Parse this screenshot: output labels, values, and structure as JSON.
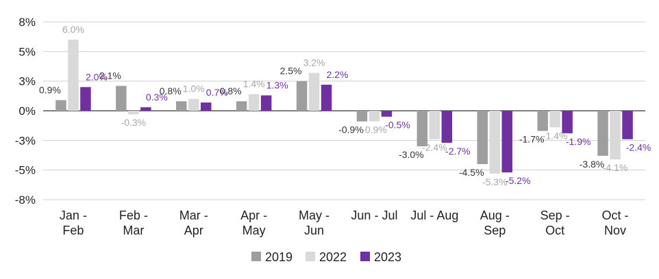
{
  "chart_data": {
    "type": "bar",
    "title": "",
    "xlabel": "",
    "ylabel": "",
    "categories": [
      [
        "Jan -",
        "Feb"
      ],
      [
        "Feb -",
        "Mar"
      ],
      [
        "Mar -",
        "Apr"
      ],
      [
        "Apr -",
        "May"
      ],
      [
        "May -",
        "Jun"
      ],
      [
        "Jun - Jul"
      ],
      [
        "Jul - Aug"
      ],
      [
        "Aug -",
        "Sep"
      ],
      [
        "Sep -",
        "Oct"
      ],
      [
        "Oct -",
        "Nov"
      ]
    ],
    "yticks": [
      {
        "value": 7.5,
        "label": "8%"
      },
      {
        "value": 5,
        "label": "5%"
      },
      {
        "value": 2.5,
        "label": "3%"
      },
      {
        "value": 0,
        "label": "0%"
      },
      {
        "value": -2.5,
        "label": "-3%"
      },
      {
        "value": -5,
        "label": "-5%"
      },
      {
        "value": -7.5,
        "label": "-8%"
      }
    ],
    "ylim": [
      -7.5,
      7.5
    ],
    "grid": true,
    "legend_position": "bottom-center",
    "series": [
      {
        "name": "2019",
        "color": "#9e9e9e",
        "label_color": "#333333",
        "values": [
          0.9,
          2.1,
          0.8,
          0.8,
          2.5,
          -0.9,
          -3.0,
          -4.5,
          -1.7,
          -3.8
        ],
        "labels": [
          "0.9%",
          "2.1%",
          "0.8%",
          "0.8%",
          "2.5%",
          "-0.9%",
          "-3.0%",
          "-4.5%",
          "-1.7%",
          "-3.8%"
        ]
      },
      {
        "name": "2022",
        "color": "#d9d9d9",
        "label_color": "#a6a6a6",
        "values": [
          6.0,
          -0.3,
          1.0,
          1.4,
          3.2,
          -0.9,
          -2.4,
          -5.3,
          -1.4,
          -4.1
        ],
        "labels": [
          "6.0%",
          "-0.3%",
          "1.0%",
          "1.4%",
          "3.2%",
          "-0.9%",
          "-2.4%",
          "-5.3%",
          "-1.4%",
          "-4.1%"
        ]
      },
      {
        "name": "2023",
        "color": "#7030a0",
        "label_color": "#7030a0",
        "values": [
          2.0,
          0.3,
          0.7,
          1.3,
          2.2,
          -0.5,
          -2.7,
          -5.2,
          -1.9,
          -2.4
        ],
        "labels": [
          "2.0%",
          "0.3%",
          "0.7%",
          "1.3%",
          "2.2%",
          "-0.5%",
          "-2.7%",
          "-5.2%",
          "-1.9%",
          "-2.4%"
        ]
      }
    ]
  }
}
